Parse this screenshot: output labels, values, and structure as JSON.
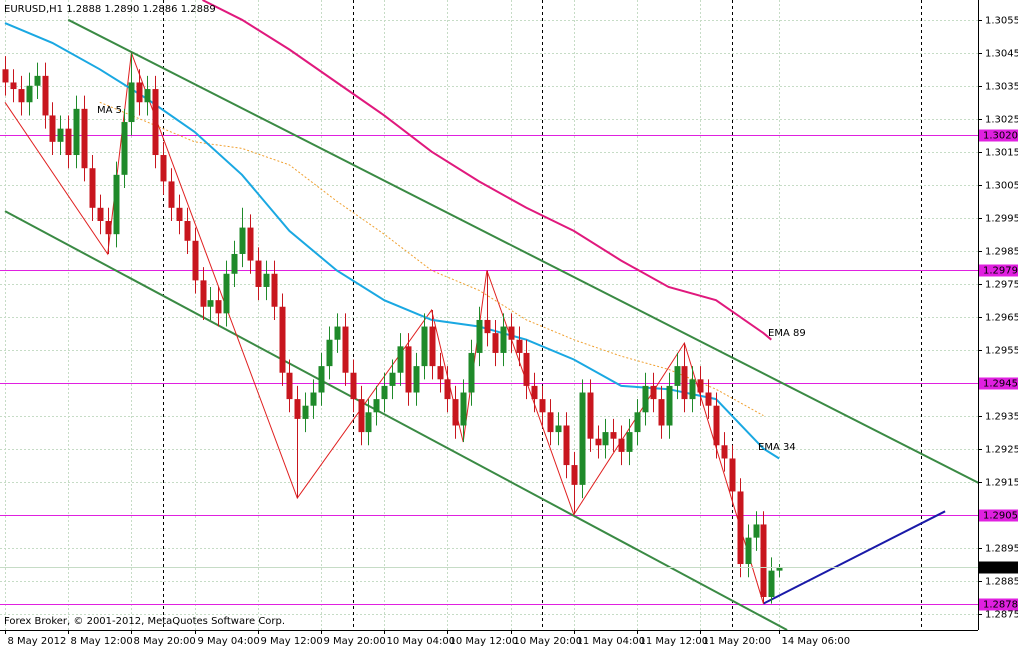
{
  "chart_data": {
    "type": "candlestick",
    "title": "EURUSD,H1 1.2888 1.2890 1.2886 1.2889",
    "footer": "Forex Broker, © 2001-2012, MetaQuotes Software Corp.",
    "grid": true,
    "up_color": "#1f8a2a",
    "down_color": "#c8161e",
    "ylim": [
      1.287,
      1.3061
    ],
    "yticks": [
      1.3055,
      1.3045,
      1.3035,
      1.3025,
      1.3015,
      1.3005,
      1.2995,
      1.2985,
      1.2975,
      1.2965,
      1.2955,
      1.2945,
      1.2935,
      1.2925,
      1.2915,
      1.2905,
      1.2895,
      1.2885,
      1.2875
    ],
    "categories": [
      "8 May 2012",
      null,
      null,
      null,
      null,
      null,
      null,
      null,
      "8 May 12:00",
      null,
      null,
      null,
      null,
      null,
      null,
      null,
      "8 May 20:00",
      null,
      null,
      null,
      null,
      null,
      null,
      null,
      "9 May 04:00",
      null,
      null,
      null,
      null,
      null,
      null,
      null,
      "9 May 12:00",
      null,
      null,
      null,
      null,
      null,
      null,
      null,
      "9 May 20:00",
      null,
      null,
      null,
      null,
      null,
      null,
      null,
      "10 May 04:00",
      null,
      null,
      null,
      null,
      null,
      null,
      null,
      "10 May 12:00",
      null,
      null,
      null,
      null,
      null,
      null,
      null,
      "10 May 20:00",
      null,
      null,
      null,
      null,
      null,
      null,
      null,
      "11 May 04:00",
      null,
      null,
      null,
      null,
      null,
      null,
      null,
      "11 May 12:00",
      null,
      null,
      null,
      null,
      null,
      null,
      null,
      "11 May 20:00",
      null,
      null,
      null,
      null,
      null,
      null,
      null,
      null,
      null,
      "14 May 06:00"
    ],
    "candles": [
      [
        1.304,
        1.3044,
        1.3032,
        1.3036
      ],
      [
        1.3036,
        1.304,
        1.303,
        1.3034
      ],
      [
        1.3034,
        1.3038,
        1.3026,
        1.303
      ],
      [
        1.303,
        1.3039,
        1.3026,
        1.3035
      ],
      [
        1.3035,
        1.3042,
        1.3031,
        1.3038
      ],
      [
        1.3038,
        1.3042,
        1.3022,
        1.3026
      ],
      [
        1.3026,
        1.303,
        1.3014,
        1.3018
      ],
      [
        1.3018,
        1.3026,
        1.3014,
        1.3022
      ],
      [
        1.3022,
        1.3026,
        1.301,
        1.3014
      ],
      [
        1.3014,
        1.3032,
        1.301,
        1.3028
      ],
      [
        1.3028,
        1.3032,
        1.3006,
        1.301
      ],
      [
        1.301,
        1.3014,
        1.2994,
        1.2998
      ],
      [
        1.2998,
        1.3002,
        1.299,
        1.2994
      ],
      [
        1.2994,
        1.2998,
        1.2984,
        1.299
      ],
      [
        1.299,
        1.3012,
        1.2986,
        1.3008
      ],
      [
        1.3008,
        1.3028,
        1.3004,
        1.3024
      ],
      [
        1.3024,
        1.3045,
        1.302,
        1.3036
      ],
      [
        1.3036,
        1.304,
        1.3026,
        1.303
      ],
      [
        1.303,
        1.3038,
        1.3026,
        1.3034
      ],
      [
        1.3034,
        1.3038,
        1.301,
        1.3014
      ],
      [
        1.3014,
        1.3018,
        1.3002,
        1.3006
      ],
      [
        1.3006,
        1.301,
        1.2994,
        1.2998
      ],
      [
        1.2998,
        1.3002,
        1.299,
        1.2994
      ],
      [
        1.2994,
        1.2998,
        1.2984,
        1.2988
      ],
      [
        1.2988,
        1.2992,
        1.2972,
        1.2976
      ],
      [
        1.2976,
        1.298,
        1.2964,
        1.2968
      ],
      [
        1.2968,
        1.2974,
        1.2964,
        1.297
      ],
      [
        1.297,
        1.2974,
        1.2962,
        1.2966
      ],
      [
        1.2966,
        1.2982,
        1.2962,
        1.2978
      ],
      [
        1.2978,
        1.2988,
        1.2974,
        1.2984
      ],
      [
        1.2984,
        1.2998,
        1.298,
        1.2992
      ],
      [
        1.2992,
        1.2996,
        1.2978,
        1.2982
      ],
      [
        1.2982,
        1.2986,
        1.297,
        1.2974
      ],
      [
        1.2974,
        1.2982,
        1.297,
        1.2978
      ],
      [
        1.2978,
        1.2982,
        1.2964,
        1.2968
      ],
      [
        1.2968,
        1.2972,
        1.2944,
        1.2948
      ],
      [
        1.2948,
        1.2952,
        1.2936,
        1.294
      ],
      [
        1.294,
        1.2944,
        1.291,
        1.2934
      ],
      [
        1.2934,
        1.2942,
        1.293,
        1.2938
      ],
      [
        1.2938,
        1.2946,
        1.2934,
        1.2942
      ],
      [
        1.2942,
        1.2954,
        1.2938,
        1.295
      ],
      [
        1.295,
        1.2962,
        1.2946,
        1.2958
      ],
      [
        1.2958,
        1.2966,
        1.2954,
        1.2962
      ],
      [
        1.2962,
        1.2966,
        1.2944,
        1.2948
      ],
      [
        1.2948,
        1.2952,
        1.2936,
        1.294
      ],
      [
        1.294,
        1.2944,
        1.2926,
        1.293
      ],
      [
        1.293,
        1.294,
        1.2926,
        1.2936
      ],
      [
        1.2936,
        1.2944,
        1.2932,
        1.294
      ],
      [
        1.294,
        1.2948,
        1.2936,
        1.2944
      ],
      [
        1.2944,
        1.2952,
        1.294,
        1.2948
      ],
      [
        1.2948,
        1.296,
        1.2944,
        1.2956
      ],
      [
        1.2956,
        1.296,
        1.2938,
        1.2942
      ],
      [
        1.2942,
        1.2954,
        1.2938,
        1.295
      ],
      [
        1.295,
        1.2966,
        1.2946,
        1.2962
      ],
      [
        1.2962,
        1.2967,
        1.2946,
        1.295
      ],
      [
        1.295,
        1.2954,
        1.2942,
        1.2946
      ],
      [
        1.2946,
        1.295,
        1.2936,
        1.294
      ],
      [
        1.294,
        1.2944,
        1.2928,
        1.2932
      ],
      [
        1.2932,
        1.2946,
        1.2927,
        1.2942
      ],
      [
        1.2942,
        1.2958,
        1.2938,
        1.2954
      ],
      [
        1.2954,
        1.2968,
        1.295,
        1.2964
      ],
      [
        1.2964,
        1.2979,
        1.2956,
        1.296
      ],
      [
        1.296,
        1.2964,
        1.295,
        1.2954
      ],
      [
        1.2954,
        1.2966,
        1.295,
        1.2962
      ],
      [
        1.2962,
        1.2966,
        1.2954,
        1.2958
      ],
      [
        1.2958,
        1.2962,
        1.295,
        1.2954
      ],
      [
        1.2954,
        1.2958,
        1.294,
        1.2944
      ],
      [
        1.2944,
        1.2948,
        1.2936,
        1.294
      ],
      [
        1.294,
        1.2944,
        1.2932,
        1.2936
      ],
      [
        1.2936,
        1.294,
        1.2926,
        1.293
      ],
      [
        1.293,
        1.2936,
        1.2926,
        1.2932
      ],
      [
        1.2932,
        1.2936,
        1.2916,
        1.292
      ],
      [
        1.292,
        1.2924,
        1.2905,
        1.2914
      ],
      [
        1.2914,
        1.2946,
        1.291,
        1.2942
      ],
      [
        1.2942,
        1.2946,
        1.2924,
        1.2928
      ],
      [
        1.2928,
        1.2932,
        1.2922,
        1.2926
      ],
      [
        1.2926,
        1.2934,
        1.2922,
        1.293
      ],
      [
        1.293,
        1.2934,
        1.2924,
        1.2928
      ],
      [
        1.2928,
        1.2932,
        1.292,
        1.2924
      ],
      [
        1.2924,
        1.2934,
        1.292,
        1.293
      ],
      [
        1.293,
        1.294,
        1.2926,
        1.2936
      ],
      [
        1.2936,
        1.2948,
        1.2932,
        1.2944
      ],
      [
        1.2944,
        1.2948,
        1.2936,
        1.294
      ],
      [
        1.294,
        1.2944,
        1.2928,
        1.2932
      ],
      [
        1.2932,
        1.2948,
        1.2928,
        1.2944
      ],
      [
        1.2944,
        1.2954,
        1.294,
        1.295
      ],
      [
        1.295,
        1.2957,
        1.2936,
        1.294
      ],
      [
        1.294,
        1.295,
        1.2936,
        1.2946
      ],
      [
        1.2946,
        1.295,
        1.2938,
        1.2942
      ],
      [
        1.2942,
        1.2946,
        1.2934,
        1.2938
      ],
      [
        1.2938,
        1.2942,
        1.2922,
        1.2926
      ],
      [
        1.2926,
        1.293,
        1.2918,
        1.2922
      ],
      [
        1.2922,
        1.2926,
        1.2908,
        1.2912
      ],
      [
        1.2912,
        1.2916,
        1.2886,
        1.289
      ],
      [
        1.289,
        1.2902,
        1.2886,
        1.2898
      ],
      [
        1.2898,
        1.2906,
        1.2894,
        1.2902
      ],
      [
        1.2902,
        1.2906,
        1.2878,
        1.288
      ],
      [
        1.288,
        1.2892,
        1.2878,
        1.2888
      ],
      [
        1.2888,
        1.289,
        1.2886,
        1.2889
      ]
    ],
    "indicators": [
      {
        "name": "MA 5",
        "color": "#f0a030",
        "dashed": true,
        "x": [
          12,
          18,
          24,
          30,
          36,
          42,
          48,
          54,
          60,
          66,
          72,
          78,
          84,
          90,
          96
        ],
        "values": [
          1.303,
          1.3024,
          1.3018,
          1.3016,
          1.3011,
          1.3,
          1.299,
          1.2979,
          1.2973,
          1.2964,
          1.2958,
          1.2953,
          1.2949,
          1.2943,
          1.2935
        ]
      },
      {
        "name": "EMA 34",
        "color": "#1aa8e2",
        "dashed": false,
        "x": [
          0,
          6,
          12,
          18,
          24,
          30,
          36,
          42,
          48,
          54,
          60,
          66,
          72,
          78,
          84,
          90,
          96,
          98
        ],
        "values": [
          1.3054,
          1.3048,
          1.304,
          1.3031,
          1.3021,
          1.3008,
          1.2991,
          1.2979,
          1.297,
          1.2964,
          1.2962,
          1.2958,
          1.2952,
          1.2944,
          1.2943,
          1.294,
          1.2925,
          1.2922
        ]
      },
      {
        "name": "EMA 89",
        "color": "#e0197d",
        "dashed": false,
        "x": [
          25,
          30,
          36,
          42,
          48,
          54,
          60,
          66,
          72,
          78,
          84,
          90,
          96,
          97
        ],
        "values": [
          1.3061,
          1.3055,
          1.3046,
          1.3036,
          1.3026,
          1.3015,
          1.3006,
          1.2998,
          1.2991,
          1.2982,
          1.2974,
          1.297,
          1.296,
          1.2958
        ]
      }
    ],
    "trendlines": [
      {
        "color": "#3a8a44",
        "x": [
          8,
          127
        ],
        "values": [
          1.3055,
          1.291
        ]
      },
      {
        "color": "#3a8a44",
        "x": [
          0,
          99
        ],
        "values": [
          1.2997,
          1.287
        ]
      },
      {
        "color": "#e02020",
        "x": [
          0,
          13,
          16,
          37,
          54,
          58,
          61,
          72,
          86,
          96
        ],
        "values": [
          1.303,
          1.2984,
          1.3045,
          1.291,
          1.2967,
          1.2927,
          1.2979,
          1.2905,
          1.2957,
          1.2878
        ]
      },
      {
        "color": "#1a1aa8",
        "x": [
          96,
          119
        ],
        "values": [
          1.2878,
          1.2906
        ]
      }
    ],
    "levels": {
      "color": "#e020e0",
      "values": [
        {
          "value": 1.302,
          "label": "1.3020"
        },
        1.2979,
        1.2945,
        1.2905,
        1.2878
      ]
    },
    "last_price": 1.2889
  }
}
